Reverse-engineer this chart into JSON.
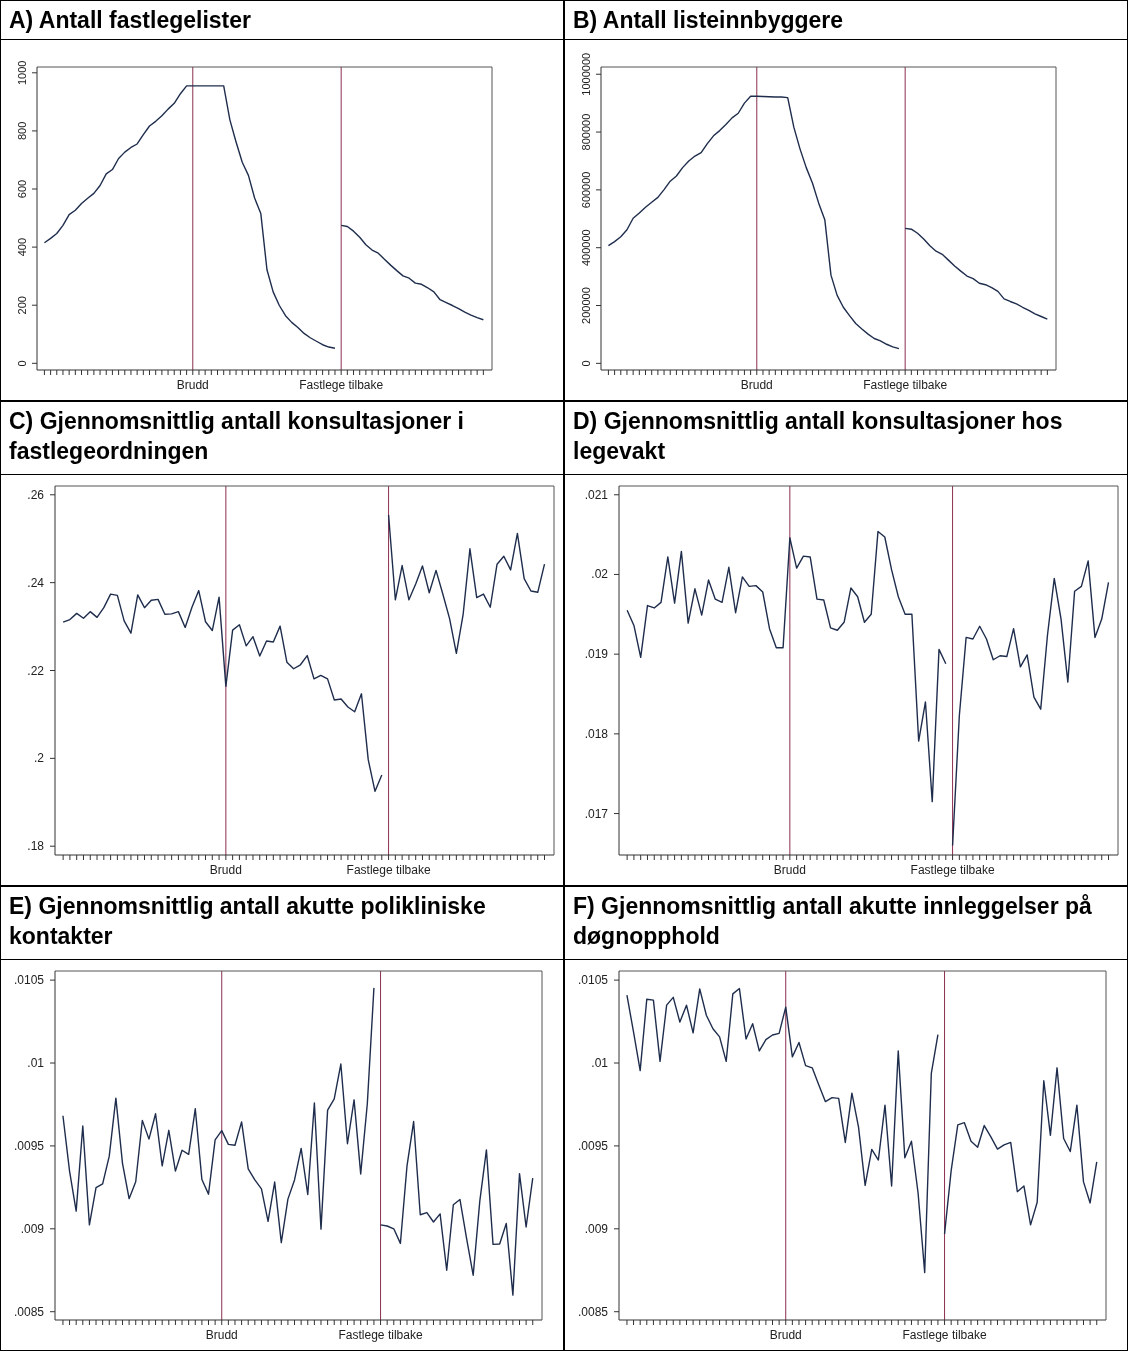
{
  "chart_data": [
    {
      "type": "line",
      "title": "A) Antall fastlegelister",
      "ylim": [
        -23,
        1020
      ],
      "yticks": [
        0,
        200,
        400,
        600,
        800,
        1000
      ],
      "categories": [
        null,
        null,
        null,
        null,
        null,
        null,
        null,
        null,
        null,
        null,
        null,
        null,
        null,
        null,
        null,
        null,
        null,
        null,
        null,
        null,
        null,
        null,
        null,
        null,
        "Brudd",
        null,
        null,
        null,
        null,
        null,
        null,
        null,
        null,
        null,
        null,
        null,
        null,
        null,
        null,
        null,
        null,
        null,
        null,
        null,
        null,
        null,
        null,
        null,
        "Fastlege tilbake",
        null,
        null,
        null,
        null,
        null,
        null,
        null,
        null,
        null,
        null,
        null,
        null,
        null,
        null,
        null,
        null,
        null,
        null,
        null,
        null,
        null,
        null,
        null
      ],
      "ref_lines": [
        {
          "axis": "x",
          "value": "Brudd",
          "color": "#8b2e50"
        },
        {
          "axis": "x",
          "value": "Fastlege tilbake",
          "color": "#8b2e50"
        }
      ],
      "series": [
        {
          "color": "#1f2d4d",
          "values": [
            415,
            430,
            447,
            475,
            512,
            527,
            550,
            568,
            585,
            612,
            652,
            667,
            705,
            727,
            743,
            755,
            787,
            817,
            833,
            852,
            875,
            895,
            928,
            955,
            955,
            955,
            955,
            955,
            955,
            955,
            838,
            762,
            692,
            647,
            569,
            516,
            322,
            246,
            199,
            164,
            141,
            123,
            103,
            88,
            76,
            64,
            56,
            52,
            null,
            null,
            null,
            null,
            null,
            null,
            null,
            null,
            null,
            null,
            null,
            null,
            null,
            null,
            null,
            null,
            null,
            null,
            null,
            null,
            null,
            null,
            null,
            null
          ]
        },
        {
          "color": "#1f2d4d",
          "values": [
            null,
            null,
            null,
            null,
            null,
            null,
            null,
            null,
            null,
            null,
            null,
            null,
            null,
            null,
            null,
            null,
            null,
            null,
            null,
            null,
            null,
            null,
            null,
            null,
            null,
            null,
            null,
            null,
            null,
            null,
            null,
            null,
            null,
            null,
            null,
            null,
            null,
            null,
            null,
            null,
            null,
            null,
            null,
            null,
            null,
            null,
            null,
            null,
            475,
            471,
            455,
            434,
            408,
            390,
            379,
            358,
            338,
            319,
            301,
            293,
            276,
            272,
            260,
            246,
            219,
            209,
            199,
            188,
            176,
            166,
            157,
            150
          ]
        }
      ]
    },
    {
      "type": "line",
      "title": "B) Antall listeinnbyggere",
      "ylim": [
        -23000,
        1025000
      ],
      "yticks": [
        0,
        200000,
        400000,
        600000,
        800000,
        1000000
      ],
      "categories": [
        null,
        null,
        null,
        null,
        null,
        null,
        null,
        null,
        null,
        null,
        null,
        null,
        null,
        null,
        null,
        null,
        null,
        null,
        null,
        null,
        null,
        null,
        null,
        null,
        "Brudd",
        null,
        null,
        null,
        null,
        null,
        null,
        null,
        null,
        null,
        null,
        null,
        null,
        null,
        null,
        null,
        null,
        null,
        null,
        null,
        null,
        null,
        null,
        null,
        "Fastlege tilbake",
        null,
        null,
        null,
        null,
        null,
        null,
        null,
        null,
        null,
        null,
        null,
        null,
        null,
        null,
        null,
        null,
        null,
        null,
        null,
        null,
        null,
        null,
        null
      ],
      "ref_lines": [
        {
          "axis": "x",
          "value": "Brudd",
          "color": "#8b2e50"
        },
        {
          "axis": "x",
          "value": "Fastlege tilbake",
          "color": "#8b2e50"
        }
      ],
      "series": [
        {
          "color": "#1f2d4d",
          "values": [
            407000,
            421000,
            438000,
            462000,
            502000,
            520000,
            540000,
            557000,
            574000,
            601000,
            630000,
            648000,
            677000,
            700000,
            717000,
            729000,
            760000,
            787000,
            805000,
            826000,
            849000,
            865000,
            900000,
            924000,
            924000,
            923000,
            922000,
            921000,
            921000,
            919000,
            816000,
            741000,
            677000,
            624000,
            555000,
            497000,
            305000,
            235000,
            194000,
            165000,
            138000,
            119000,
            101000,
            86000,
            78000,
            66000,
            57000,
            51000,
            null,
            null,
            null,
            null,
            null,
            null,
            null,
            null,
            null,
            null,
            null,
            null,
            null,
            null,
            null,
            null,
            null,
            null,
            null,
            null,
            null,
            null,
            null,
            null
          ]
        },
        {
          "color": "#1f2d4d",
          "values": [
            null,
            null,
            null,
            null,
            null,
            null,
            null,
            null,
            null,
            null,
            null,
            null,
            null,
            null,
            null,
            null,
            null,
            null,
            null,
            null,
            null,
            null,
            null,
            null,
            null,
            null,
            null,
            null,
            null,
            null,
            null,
            null,
            null,
            null,
            null,
            null,
            null,
            null,
            null,
            null,
            null,
            null,
            null,
            null,
            null,
            null,
            null,
            null,
            467000,
            464000,
            450000,
            430000,
            407000,
            388000,
            377000,
            357000,
            337000,
            319000,
            302000,
            293000,
            277000,
            272000,
            262000,
            249000,
            223000,
            214000,
            206000,
            194000,
            183000,
            171000,
            162000,
            153000
          ]
        }
      ]
    },
    {
      "type": "line",
      "title": "C) Gjennomsnittlig antall konsultasjoner i fastlegeordningen",
      "ylim": [
        0.178,
        0.262
      ],
      "yticks": [
        {
          "value": 0.18,
          "label": ".18"
        },
        {
          "value": 0.2,
          "label": ".2"
        },
        {
          "value": 0.22,
          "label": ".22"
        },
        {
          "value": 0.24,
          "label": ".24"
        },
        {
          "value": 0.26,
          "label": ".26"
        }
      ],
      "categories": [
        null,
        null,
        null,
        null,
        null,
        null,
        null,
        null,
        null,
        null,
        null,
        null,
        null,
        null,
        null,
        null,
        null,
        null,
        null,
        null,
        null,
        null,
        null,
        null,
        "Brudd",
        null,
        null,
        null,
        null,
        null,
        null,
        null,
        null,
        null,
        null,
        null,
        null,
        null,
        null,
        null,
        null,
        null,
        null,
        null,
        null,
        null,
        null,
        null,
        "Fastlege tilbake",
        null,
        null,
        null,
        null,
        null,
        null,
        null,
        null,
        null,
        null,
        null,
        null,
        null,
        null,
        null,
        null,
        null,
        null,
        null,
        null,
        null,
        null,
        null
      ],
      "ref_lines": [
        {
          "axis": "x",
          "value": "Brudd",
          "color": "#8b2e50"
        },
        {
          "axis": "x",
          "value": "Fastlege tilbake",
          "color": "#8b2e50"
        }
      ],
      "series": [
        {
          "color": "#1f2d4d",
          "values": [
            0.231,
            0.2316,
            0.233,
            0.2319,
            0.2334,
            0.2321,
            0.2343,
            0.2374,
            0.2371,
            0.2313,
            0.2285,
            0.2372,
            0.2343,
            0.236,
            0.2362,
            0.2328,
            0.2329,
            0.2334,
            0.2298,
            0.2344,
            0.2382,
            0.2311,
            0.2291,
            0.2367,
            0.2164,
            0.2292,
            0.2304,
            0.2256,
            0.2277,
            0.2233,
            0.2267,
            0.2265,
            0.2301,
            0.2219,
            0.2204,
            0.2213,
            0.2234,
            0.2181,
            0.2189,
            0.2181,
            0.2133,
            0.2135,
            0.2117,
            0.2106,
            0.2147,
            0.1997,
            0.1925,
            0.1962,
            null,
            null,
            null,
            null,
            null,
            null,
            null,
            null,
            null,
            null,
            null,
            null,
            null,
            null,
            null,
            null,
            null,
            null,
            null,
            null,
            null,
            null,
            null,
            null
          ]
        },
        {
          "color": "#1f2d4d",
          "values": [
            null,
            null,
            null,
            null,
            null,
            null,
            null,
            null,
            null,
            null,
            null,
            null,
            null,
            null,
            null,
            null,
            null,
            null,
            null,
            null,
            null,
            null,
            null,
            null,
            null,
            null,
            null,
            null,
            null,
            null,
            null,
            null,
            null,
            null,
            null,
            null,
            null,
            null,
            null,
            null,
            null,
            null,
            null,
            null,
            null,
            null,
            null,
            null,
            0.2554,
            0.2361,
            0.2439,
            0.2361,
            0.2397,
            0.2438,
            0.2377,
            0.2428,
            0.2374,
            0.2318,
            0.2239,
            0.2328,
            0.2477,
            0.2366,
            0.2374,
            0.2344,
            0.2442,
            0.246,
            0.2429,
            0.2512,
            0.2409,
            0.2381,
            0.2378,
            0.2442
          ]
        }
      ]
    },
    {
      "type": "line",
      "title": "D) Gjennomsnittlig antall konsultasjoner hos legevakt",
      "ylim": [
        0.01648,
        0.02111
      ],
      "yticks": [
        {
          "value": 0.017,
          "label": ".017"
        },
        {
          "value": 0.018,
          "label": ".018"
        },
        {
          "value": 0.019,
          "label": ".019"
        },
        {
          "value": 0.02,
          "label": ".02"
        },
        {
          "value": 0.021,
          "label": ".021"
        }
      ],
      "categories": [
        null,
        null,
        null,
        null,
        null,
        null,
        null,
        null,
        null,
        null,
        null,
        null,
        null,
        null,
        null,
        null,
        null,
        null,
        null,
        null,
        null,
        null,
        null,
        null,
        "Brudd",
        null,
        null,
        null,
        null,
        null,
        null,
        null,
        null,
        null,
        null,
        null,
        null,
        null,
        null,
        null,
        null,
        null,
        null,
        null,
        null,
        null,
        null,
        null,
        "Fastlege tilbake",
        null,
        null,
        null,
        null,
        null,
        null,
        null,
        null,
        null,
        null,
        null,
        null,
        null,
        null,
        null,
        null,
        null,
        null,
        null,
        null,
        null,
        null,
        null
      ],
      "ref_lines": [
        {
          "axis": "x",
          "value": "Brudd",
          "color": "#8b2e50"
        },
        {
          "axis": "x",
          "value": "Fastlege tilbake",
          "color": "#8b2e50"
        }
      ],
      "series": [
        {
          "color": "#1f2d4d",
          "values": [
            0.01955,
            0.01936,
            0.01896,
            0.01961,
            0.01958,
            0.01965,
            0.02022,
            0.01964,
            0.02029,
            0.01939,
            0.01982,
            0.01949,
            0.01993,
            0.01969,
            0.01965,
            0.02009,
            0.01952,
            0.01997,
            0.01985,
            0.01986,
            0.01978,
            0.01932,
            0.01908,
            0.01908,
            0.02046,
            0.02008,
            0.02023,
            0.02022,
            0.01969,
            0.01968,
            0.01933,
            0.0193,
            0.0194,
            0.01983,
            0.01972,
            0.0194,
            0.0195,
            0.02054,
            0.02047,
            0.02006,
            0.01972,
            0.0195,
            0.0195,
            0.01791,
            0.0184,
            0.01715,
            0.01906,
            0.01888,
            null,
            null,
            null,
            null,
            null,
            null,
            null,
            null,
            null,
            null,
            null,
            null,
            null,
            null,
            null,
            null,
            null,
            null,
            null,
            null,
            null,
            null,
            null,
            null
          ]
        },
        {
          "color": "#1f2d4d",
          "values": [
            null,
            null,
            null,
            null,
            null,
            null,
            null,
            null,
            null,
            null,
            null,
            null,
            null,
            null,
            null,
            null,
            null,
            null,
            null,
            null,
            null,
            null,
            null,
            null,
            null,
            null,
            null,
            null,
            null,
            null,
            null,
            null,
            null,
            null,
            null,
            null,
            null,
            null,
            null,
            null,
            null,
            null,
            null,
            null,
            null,
            null,
            null,
            null,
            0.0166,
            0.01823,
            0.01921,
            0.01919,
            0.01935,
            0.01919,
            0.01893,
            0.01898,
            0.01897,
            0.01932,
            0.01884,
            0.01899,
            0.01846,
            0.01831,
            0.01924,
            0.01995,
            0.01944,
            0.01865,
            0.01979,
            0.01985,
            0.02017,
            0.01921,
            0.01944,
            0.0199
          ]
        }
      ]
    },
    {
      "type": "line",
      "title": "E) Gjennomsnittlig antall akutte polikliniske kontakter",
      "ylim": [
        0.00845,
        0.010555
      ],
      "yticks": [
        {
          "value": 0.0085,
          "label": ".0085"
        },
        {
          "value": 0.009,
          "label": ".009"
        },
        {
          "value": 0.0095,
          "label": ".0095"
        },
        {
          "value": 0.01,
          "label": ".01"
        },
        {
          "value": 0.0105,
          "label": ".0105"
        }
      ],
      "categories": [
        null,
        null,
        null,
        null,
        null,
        null,
        null,
        null,
        null,
        null,
        null,
        null,
        null,
        null,
        null,
        null,
        null,
        null,
        null,
        null,
        null,
        null,
        null,
        null,
        "Brudd",
        null,
        null,
        null,
        null,
        null,
        null,
        null,
        null,
        null,
        null,
        null,
        null,
        null,
        null,
        null,
        null,
        null,
        null,
        null,
        null,
        null,
        null,
        null,
        "Fastlege tilbake",
        null,
        null,
        null,
        null,
        null,
        null,
        null,
        null,
        null,
        null,
        null,
        null,
        null,
        null,
        null,
        null,
        null,
        null,
        null,
        null,
        null,
        null,
        null
      ],
      "ref_lines": [
        {
          "axis": "x",
          "value": "Brudd",
          "color": "#8b2e50"
        },
        {
          "axis": "x",
          "value": "Fastlege tilbake",
          "color": "#8b2e50"
        }
      ],
      "series": [
        {
          "color": "#1f2d4d",
          "values": [
            0.009682,
            0.009348,
            0.009107,
            0.00962,
            0.009024,
            0.009248,
            0.009271,
            0.009438,
            0.009788,
            0.009395,
            0.009182,
            0.009284,
            0.009654,
            0.009541,
            0.009694,
            0.00938,
            0.009594,
            0.009348,
            0.009474,
            0.009449,
            0.009724,
            0.009297,
            0.009209,
            0.009536,
            0.009592,
            0.009509,
            0.009504,
            0.009645,
            0.009361,
            0.009295,
            0.009241,
            0.009045,
            0.009282,
            0.008917,
            0.009179,
            0.009295,
            0.009485,
            0.009207,
            0.009759,
            0.008998,
            0.009716,
            0.009784,
            0.009994,
            0.009513,
            0.009778,
            0.009331,
            0.009754,
            0.010453,
            null,
            null,
            null,
            null,
            null,
            null,
            null,
            null,
            null,
            null,
            null,
            null,
            null,
            null,
            null,
            null,
            null,
            null,
            null,
            null,
            null,
            null,
            null,
            null
          ]
        },
        {
          "color": "#1f2d4d",
          "values": [
            null,
            null,
            null,
            null,
            null,
            null,
            null,
            null,
            null,
            null,
            null,
            null,
            null,
            null,
            null,
            null,
            null,
            null,
            null,
            null,
            null,
            null,
            null,
            null,
            null,
            null,
            null,
            null,
            null,
            null,
            null,
            null,
            null,
            null,
            null,
            null,
            null,
            null,
            null,
            null,
            null,
            null,
            null,
            null,
            null,
            null,
            null,
            null,
            0.009024,
            0.009017,
            0.009,
            0.008912,
            0.00938,
            0.009647,
            0.009085,
            0.009098,
            0.009041,
            0.00909,
            0.00875,
            0.009145,
            0.009177,
            0.008942,
            0.00872,
            0.009167,
            0.009476,
            0.008906,
            0.008908,
            0.009032,
            0.0086,
            0.009333,
            0.009011,
            0.009306
          ]
        }
      ]
    },
    {
      "type": "line",
      "title": "F) Gjennomsnittlig antall akutte innleggelser på døgnopphold",
      "ylim": [
        0.00845,
        0.010555
      ],
      "yticks": [
        {
          "value": 0.0085,
          "label": ".0085"
        },
        {
          "value": 0.009,
          "label": ".009"
        },
        {
          "value": 0.0095,
          "label": ".0095"
        },
        {
          "value": 0.01,
          "label": ".01"
        },
        {
          "value": 0.0105,
          "label": ".0105"
        }
      ],
      "categories": [
        null,
        null,
        null,
        null,
        null,
        null,
        null,
        null,
        null,
        null,
        null,
        null,
        null,
        null,
        null,
        null,
        null,
        null,
        null,
        null,
        null,
        null,
        null,
        null,
        "Brudd",
        null,
        null,
        null,
        null,
        null,
        null,
        null,
        null,
        null,
        null,
        null,
        null,
        null,
        null,
        null,
        null,
        null,
        null,
        null,
        null,
        null,
        null,
        null,
        "Fastlege tilbake",
        null,
        null,
        null,
        null,
        null,
        null,
        null,
        null,
        null,
        null,
        null,
        null,
        null,
        null,
        null,
        null,
        null,
        null,
        null,
        null,
        null,
        null,
        null
      ],
      "ref_lines": [
        {
          "axis": "x",
          "value": "Brudd",
          "color": "#8b2e50"
        },
        {
          "axis": "x",
          "value": "Fastlege tilbake",
          "color": "#8b2e50"
        }
      ],
      "series": [
        {
          "color": "#1f2d4d",
          "values": [
            0.010409,
            0.010186,
            0.009954,
            0.010385,
            0.010379,
            0.01001,
            0.010349,
            0.010396,
            0.010247,
            0.010349,
            0.010182,
            0.010447,
            0.010288,
            0.010207,
            0.010158,
            0.01001,
            0.010417,
            0.010449,
            0.010145,
            0.010237,
            0.010073,
            0.010141,
            0.010169,
            0.010179,
            0.010337,
            0.010037,
            0.010124,
            0.009984,
            0.009971,
            0.009867,
            0.009767,
            0.009791,
            0.009787,
            0.009521,
            0.009818,
            0.009613,
            0.009262,
            0.009479,
            0.009415,
            0.009746,
            0.009258,
            0.010073,
            0.009428,
            0.009528,
            0.009216,
            0.008736,
            0.009937,
            0.010171,
            null,
            null,
            null,
            null,
            null,
            null,
            null,
            null,
            null,
            null,
            null,
            null,
            null,
            null,
            null,
            null,
            null,
            null,
            null,
            null,
            null,
            null,
            null,
            null
          ]
        },
        {
          "color": "#1f2d4d",
          "values": [
            null,
            null,
            null,
            null,
            null,
            null,
            null,
            null,
            null,
            null,
            null,
            null,
            null,
            null,
            null,
            null,
            null,
            null,
            null,
            null,
            null,
            null,
            null,
            null,
            null,
            null,
            null,
            null,
            null,
            null,
            null,
            null,
            null,
            null,
            null,
            null,
            null,
            null,
            null,
            null,
            null,
            null,
            null,
            null,
            null,
            null,
            null,
            null,
            0.008969,
            0.009351,
            0.009627,
            0.00964,
            0.009528,
            0.009492,
            0.009623,
            0.009555,
            0.009481,
            0.009506,
            0.009521,
            0.009224,
            0.009258,
            0.009024,
            0.00916,
            0.009893,
            0.009564,
            0.009971,
            0.009545,
            0.009466,
            0.009746,
            0.009283,
            0.009156,
            0.009404
          ]
        }
      ]
    }
  ]
}
